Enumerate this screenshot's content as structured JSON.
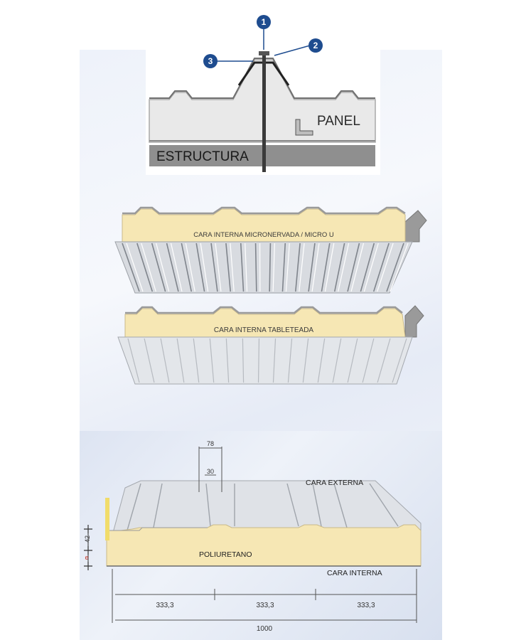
{
  "detail": {
    "markers": [
      "1",
      "2",
      "3"
    ],
    "panel_label": "PANEL",
    "structure_label": "ESTRUCTURA"
  },
  "panel_micro": {
    "label": "CARA INTERNA MICRONERVADA / MICRO U"
  },
  "panel_tableteada": {
    "label": "CARA INTERNA TABLETEADA"
  },
  "section": {
    "dim_rib_top": "78",
    "dim_rib_inner": "30",
    "dim_height": "42",
    "dim_thickness": "e",
    "outer_face_label": "CARA EXTERNA",
    "core_label": "POLIURETANO",
    "inner_face_label": "CARA INTERNA",
    "spans": [
      "333,3",
      "333,3",
      "333,3"
    ],
    "total_width": "1000"
  },
  "colors": {
    "marker_blue": "#1e4c8f",
    "foam": "#f6e7b4",
    "steel": "#d4d7dc",
    "structure": "#8f8f8f"
  }
}
